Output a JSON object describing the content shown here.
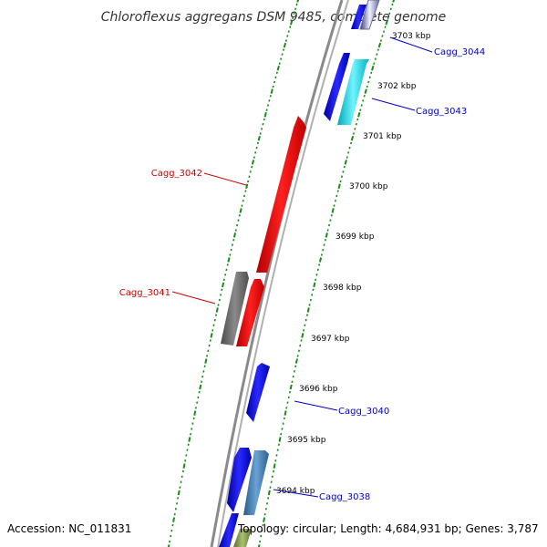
{
  "title": "Chloroflexus aggregans DSM 9485, complete genome",
  "footer": {
    "accession": "Accession: NC_011831",
    "topology": "Topology: circular; Length: 4,684,931 bp; Genes: 3,787"
  },
  "colors": {
    "backbone": "#8a8a8a",
    "tick": "#1a8a1a",
    "forward_label": "#0000cc",
    "reverse_label": "#cc0000",
    "blue": "#1010e8",
    "red": "#f01010",
    "gray": "#6e6e6e",
    "cyan": "#40e0f0",
    "steel": "#4682b4",
    "olive": "#8aa050",
    "lavender": "#7070a0"
  },
  "scale": {
    "labels": [
      "3703 kbp",
      "3702 kbp",
      "3701 kbp",
      "3700 kbp",
      "3699 kbp",
      "3698 kbp",
      "3697 kbp",
      "3696 kbp",
      "3695 kbp",
      "3694 kbp"
    ]
  },
  "gene_labels": {
    "forward": [
      "Cagg_3044",
      "Cagg_3043",
      "Cagg_3040",
      "Cagg_3038"
    ],
    "reverse": [
      "Cagg_3042",
      "Cagg_3041"
    ]
  }
}
